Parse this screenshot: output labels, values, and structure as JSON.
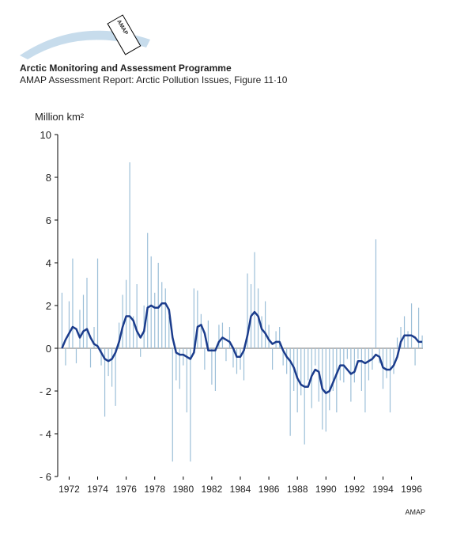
{
  "header": {
    "logo_text": "AMAP",
    "title": "Arctic Monitoring and Assessment Programme",
    "subtitle": "AMAP Assessment Report: Arctic Pollution Issues, Figure 11·10"
  },
  "chart_data": {
    "type": "bar",
    "y_label": "Million km²",
    "footer": "AMAP",
    "x": [
      1971.5,
      1971.75,
      1972,
      1972.25,
      1972.5,
      1972.75,
      1973,
      1973.25,
      1973.5,
      1973.75,
      1974,
      1974.25,
      1974.5,
      1974.75,
      1975,
      1975.25,
      1975.5,
      1975.75,
      1976,
      1976.25,
      1976.5,
      1976.75,
      1977,
      1977.25,
      1977.5,
      1977.75,
      1978,
      1978.25,
      1978.5,
      1978.75,
      1979,
      1979.25,
      1979.5,
      1979.75,
      1980,
      1980.25,
      1980.5,
      1980.75,
      1981,
      1981.25,
      1981.5,
      1981.75,
      1982,
      1982.25,
      1982.5,
      1982.75,
      1983,
      1983.25,
      1983.5,
      1983.75,
      1984,
      1984.25,
      1984.5,
      1984.75,
      1985,
      1985.25,
      1985.5,
      1985.75,
      1986,
      1986.25,
      1986.5,
      1986.75,
      1987,
      1987.25,
      1987.5,
      1987.75,
      1988,
      1988.25,
      1988.5,
      1988.75,
      1989,
      1989.25,
      1989.5,
      1989.75,
      1990,
      1990.25,
      1990.5,
      1990.75,
      1991,
      1991.25,
      1991.5,
      1991.75,
      1992,
      1992.25,
      1992.5,
      1992.75,
      1993,
      1993.25,
      1993.5,
      1993.75,
      1994,
      1994.25,
      1994.5,
      1994.75,
      1995,
      1995.25,
      1995.5,
      1995.75,
      1996,
      1996.25,
      1996.5,
      1996.75
    ],
    "series": [
      {
        "type": "bar",
        "color": "#9cbfd8",
        "values": [
          2.6,
          -0.8,
          2.2,
          4.2,
          -0.7,
          1.8,
          2.5,
          3.3,
          -0.9,
          1.0,
          4.2,
          -0.8,
          -3.2,
          -1.3,
          -1.8,
          -2.7,
          1.2,
          2.5,
          3.2,
          8.7,
          1.5,
          3.0,
          -0.4,
          2.0,
          5.4,
          4.3,
          2.6,
          4.0,
          3.1,
          2.8,
          1.5,
          -5.3,
          -1.5,
          -1.9,
          -0.8,
          -3.0,
          -5.3,
          2.8,
          2.7,
          1.6,
          -1.0,
          1.3,
          -1.7,
          -2.0,
          1.1,
          1.2,
          -0.6,
          1.0,
          -0.9,
          -1.2,
          -1.0,
          -1.5,
          3.5,
          3.0,
          4.5,
          2.8,
          1.5,
          2.2,
          1.1,
          -1.0,
          0.8,
          1.0,
          -0.8,
          -1.2,
          -4.1,
          -2.0,
          -3.0,
          -2.2,
          -4.5,
          -1.5,
          -2.8,
          -0.8,
          -2.5,
          -3.8,
          -3.9,
          -2.9,
          -2.0,
          -3.0,
          -1.5,
          -1.6,
          -0.5,
          -2.5,
          -1.6,
          -0.5,
          -2.0,
          -3.0,
          -1.5,
          -1.0,
          5.1,
          -0.7,
          -1.9,
          -1.4,
          -3.0,
          -1.2,
          0.5,
          1.0,
          1.5,
          0.8,
          2.1,
          -0.8,
          1.9,
          0.6
        ]
      },
      {
        "type": "line",
        "color": "#1b3c8c",
        "values": [
          0.0,
          0.4,
          0.7,
          1.0,
          0.9,
          0.5,
          0.8,
          0.9,
          0.5,
          0.2,
          0.1,
          -0.2,
          -0.5,
          -0.6,
          -0.5,
          -0.2,
          0.3,
          1.0,
          1.5,
          1.5,
          1.3,
          0.8,
          0.5,
          0.8,
          1.9,
          2.0,
          1.9,
          1.9,
          2.1,
          2.1,
          1.8,
          0.5,
          -0.2,
          -0.3,
          -0.3,
          -0.4,
          -0.5,
          -0.2,
          1.0,
          1.1,
          0.7,
          -0.1,
          -0.1,
          -0.1,
          0.3,
          0.5,
          0.4,
          0.3,
          0.0,
          -0.4,
          -0.4,
          -0.1,
          0.6,
          1.5,
          1.7,
          1.5,
          0.9,
          0.7,
          0.4,
          0.2,
          0.3,
          0.3,
          -0.1,
          -0.4,
          -0.6,
          -0.9,
          -1.4,
          -1.7,
          -1.8,
          -1.8,
          -1.3,
          -1.0,
          -1.1,
          -1.9,
          -2.1,
          -2.0,
          -1.6,
          -1.2,
          -0.8,
          -0.8,
          -1.0,
          -1.2,
          -1.1,
          -0.6,
          -0.6,
          -0.7,
          -0.6,
          -0.5,
          -0.3,
          -0.4,
          -0.9,
          -1.0,
          -1.0,
          -0.8,
          -0.4,
          0.3,
          0.6,
          0.6,
          0.6,
          0.5,
          0.3,
          0.3
        ]
      }
    ],
    "xlim": [
      1971.2,
      1996.8
    ],
    "xticks": [
      1972,
      1974,
      1976,
      1978,
      1980,
      1982,
      1984,
      1986,
      1988,
      1990,
      1992,
      1994,
      1996
    ],
    "ylim": [
      -6,
      10
    ],
    "yticks": [
      {
        "value": -6,
        "label": "- 6"
      },
      {
        "value": -4,
        "label": "- 4"
      },
      {
        "value": -2,
        "label": "- 2"
      },
      0,
      2,
      4,
      6,
      8,
      10
    ]
  }
}
